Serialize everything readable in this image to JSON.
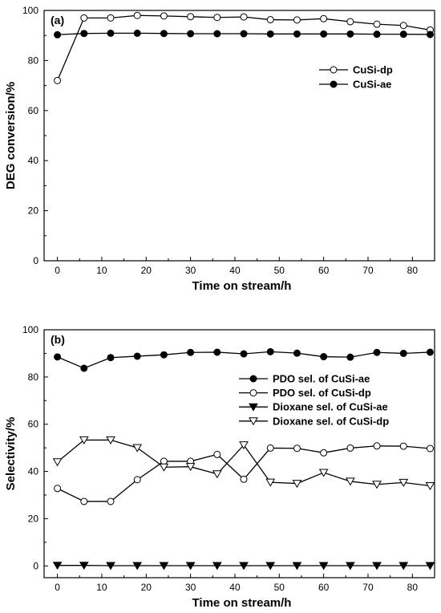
{
  "chart_data": [
    {
      "type": "line",
      "panel_label": "(a)",
      "xlabel": "Time on stream/h",
      "ylabel": "DEG conversion/%",
      "xlim": [
        -3,
        85
      ],
      "ylim": [
        0,
        100
      ],
      "xticks": [
        0,
        10,
        20,
        30,
        40,
        50,
        60,
        70,
        80
      ],
      "yticks": [
        0,
        20,
        40,
        60,
        80,
        100
      ],
      "grid": false,
      "legend_position": "right-upper",
      "x": [
        0,
        6,
        12,
        18,
        24,
        30,
        36,
        42,
        48,
        54,
        60,
        66,
        72,
        78,
        84
      ],
      "series": [
        {
          "name": "CuSi-dp",
          "marker": "open-circle",
          "values": [
            72,
            97,
            97,
            98,
            97.8,
            97.5,
            97.2,
            97.4,
            96.3,
            96.2,
            96.7,
            95.5,
            94.5,
            94,
            92.2
          ]
        },
        {
          "name": "CuSi-ae",
          "marker": "filled-circle",
          "values": [
            90.3,
            90.8,
            90.9,
            90.9,
            90.8,
            90.7,
            90.7,
            90.7,
            90.6,
            90.6,
            90.6,
            90.6,
            90.5,
            90.5,
            90.4
          ]
        }
      ]
    },
    {
      "type": "line",
      "panel_label": "(b)",
      "xlabel": "Time on stream/h",
      "ylabel": "Selectivity/%",
      "xlim": [
        -3,
        85
      ],
      "ylim": [
        -5,
        100
      ],
      "xticks": [
        0,
        10,
        20,
        30,
        40,
        50,
        60,
        70,
        80
      ],
      "yticks": [
        0,
        20,
        40,
        60,
        80,
        100
      ],
      "grid": false,
      "legend_position": "right-middle",
      "x": [
        0,
        6,
        12,
        18,
        24,
        30,
        36,
        42,
        48,
        54,
        60,
        66,
        72,
        78,
        84
      ],
      "series": [
        {
          "name": "PDO sel. of CuSi-ae",
          "marker": "filled-circle",
          "values": [
            88.5,
            83.7,
            88.2,
            88.8,
            89.4,
            90.4,
            90.5,
            89.8,
            90.7,
            90.1,
            88.6,
            88.4,
            90.4,
            90.0,
            90.5
          ]
        },
        {
          "name": "PDO sel. of CuSi-dp",
          "marker": "open-circle",
          "values": [
            32.8,
            27.3,
            27.3,
            36.5,
            44.3,
            44.3,
            47.2,
            36.7,
            49.9,
            49.8,
            47.9,
            49.9,
            50.8,
            50.7,
            49.7
          ]
        },
        {
          "name": "Dioxane sel. of CuSi-ae",
          "marker": "filled-triangle-down",
          "values": [
            0.2,
            0.2,
            0.1,
            0.1,
            0.1,
            0.1,
            0.1,
            0.1,
            0.1,
            0.1,
            0.1,
            0.1,
            0.1,
            0.1,
            0.1
          ]
        },
        {
          "name": "Dioxane sel. of CuSi-dp",
          "marker": "open-triangle-down",
          "values": [
            44.0,
            53.3,
            53.3,
            50.0,
            41.8,
            42.0,
            38.9,
            51.2,
            35.4,
            34.9,
            39.5,
            35.8,
            34.5,
            35.3,
            33.9
          ]
        }
      ]
    }
  ]
}
